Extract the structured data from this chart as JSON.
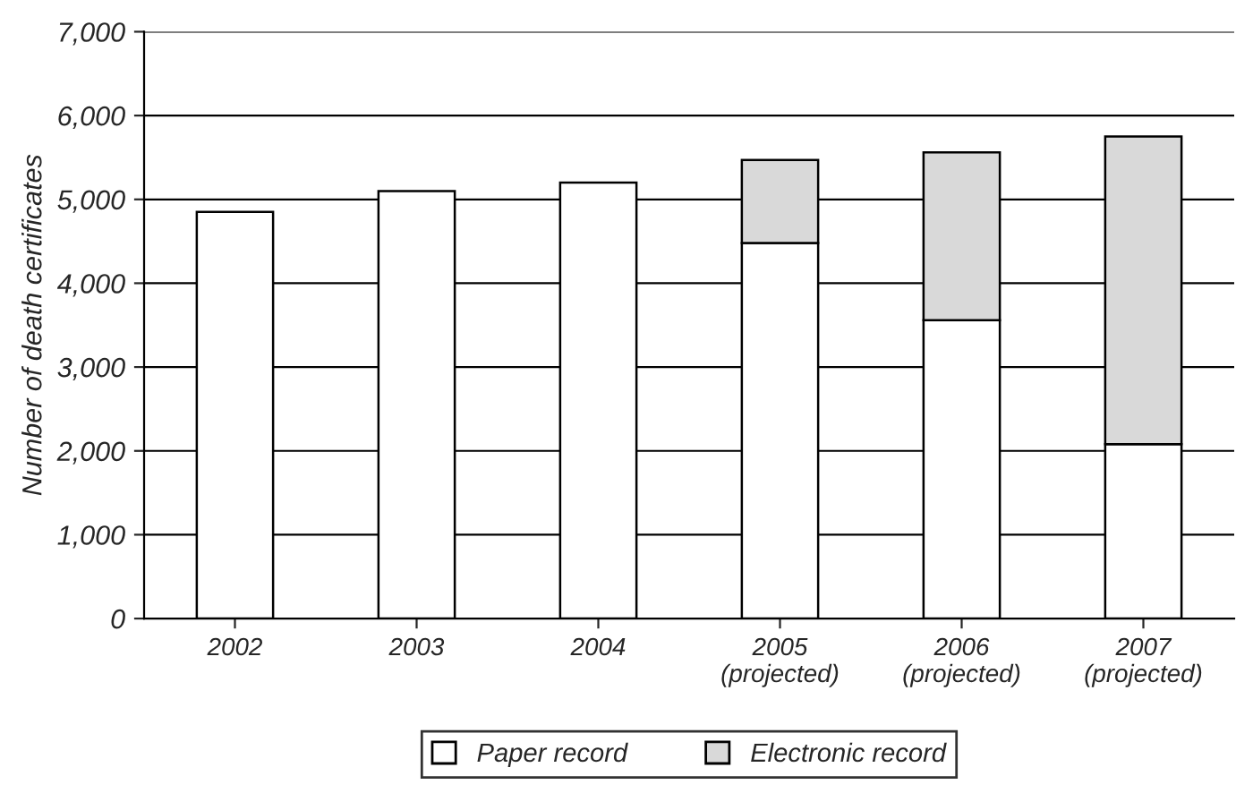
{
  "chart_data": {
    "type": "bar",
    "stacked": true,
    "ylabel": "Number of death certificates",
    "categories": [
      "2002",
      "2003",
      "2004",
      "2005\n(projected)",
      "2006\n(projected)",
      "2007\n(projected)"
    ],
    "series": [
      {
        "name": "Paper record",
        "color": "#ffffff",
        "values": [
          4850,
          5100,
          5200,
          4480,
          3560,
          2080
        ]
      },
      {
        "name": "Electronic record",
        "color": "#d9d9d9",
        "values": [
          null,
          null,
          null,
          990,
          2000,
          3670
        ]
      }
    ],
    "ylim": [
      0,
      7000
    ],
    "yticks": [
      {
        "value": 0,
        "label": "0"
      },
      {
        "value": 1000,
        "label": "1,000"
      },
      {
        "value": 2000,
        "label": "2,000"
      },
      {
        "value": 3000,
        "label": "3,000"
      },
      {
        "value": 4000,
        "label": "4,000"
      },
      {
        "value": 5000,
        "label": "5,000"
      },
      {
        "value": 6000,
        "label": "6,000"
      },
      {
        "value": 7000,
        "label": "7,000"
      }
    ],
    "grid": "y",
    "legend": "bottom"
  }
}
